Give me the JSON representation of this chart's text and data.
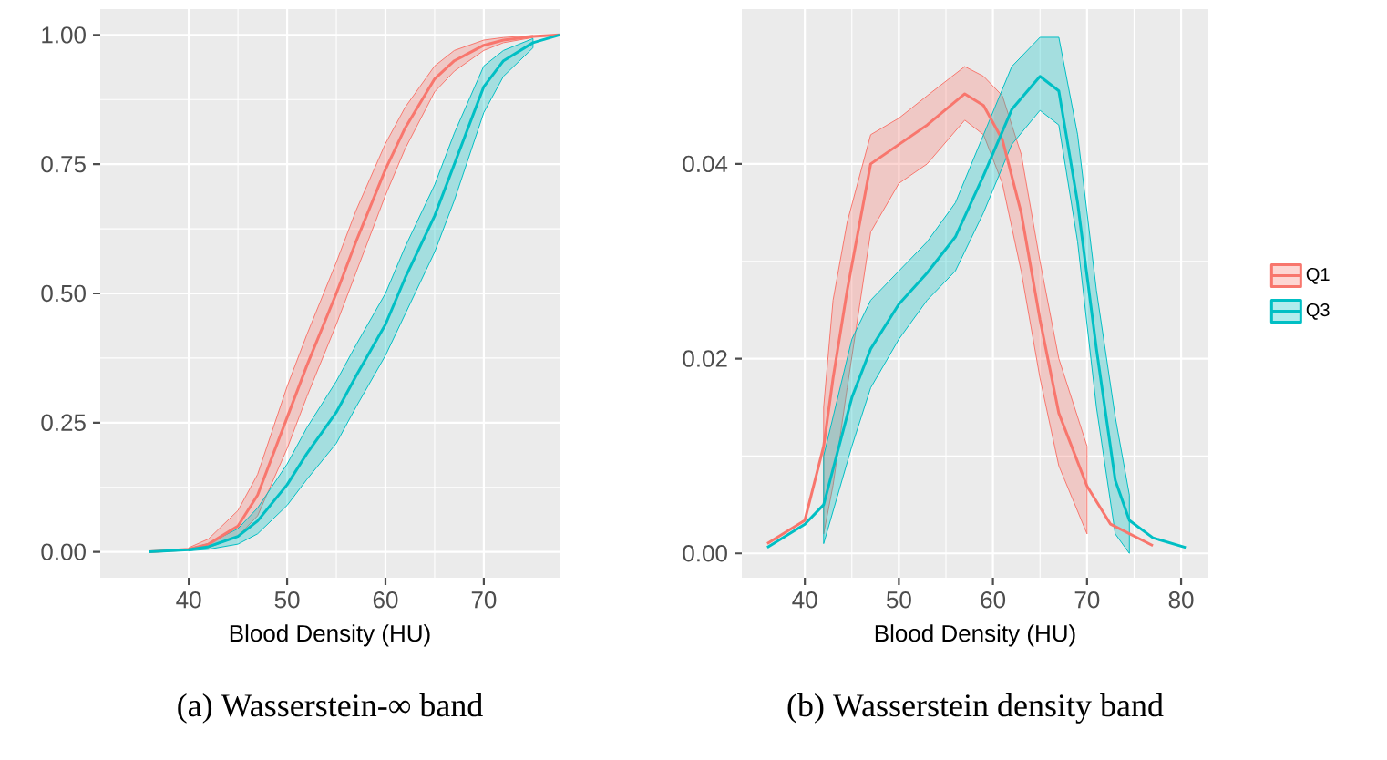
{
  "chart_data": [
    {
      "type": "line",
      "xlabel": "Blood Density (HU)",
      "annotations": [
        "(a) Wasserstein-∞ band"
      ],
      "xlim": [
        31,
        77.7
      ],
      "ylim": [
        -0.05,
        1.05
      ],
      "xticks": [
        40,
        50,
        60,
        70
      ],
      "yticks": [
        {
          "value": 0,
          "label": "0.00"
        },
        {
          "value": 0.25,
          "label": "0.25"
        },
        {
          "value": 0.5,
          "label": "0.50"
        },
        {
          "value": 0.75,
          "label": "0.75"
        },
        {
          "value": 1,
          "label": "1.00"
        }
      ],
      "grid": true,
      "series": [
        {
          "color": "#f8766d",
          "x": [
            36,
            40,
            42,
            45,
            47,
            50,
            52,
            55,
            57,
            60,
            62,
            65,
            67,
            70,
            72,
            75,
            77.7
          ],
          "values": [
            0,
            0.005,
            0.015,
            0.05,
            0.11,
            0.26,
            0.36,
            0.5,
            0.6,
            0.74,
            0.82,
            0.915,
            0.95,
            0.98,
            0.99,
            0.997,
            1
          ],
          "lower": [
            null,
            0.003,
            0.008,
            0.03,
            0.07,
            0.2,
            0.3,
            0.44,
            0.54,
            0.69,
            0.78,
            0.89,
            0.93,
            0.97,
            0.985,
            0.995,
            null
          ],
          "upper": [
            null,
            0.008,
            0.025,
            0.08,
            0.15,
            0.32,
            0.42,
            0.56,
            0.66,
            0.79,
            0.86,
            0.94,
            0.97,
            0.99,
            0.995,
            0.999,
            null
          ]
        },
        {
          "color": "#00bfc4",
          "x": [
            36,
            40,
            42,
            45,
            47,
            50,
            52,
            55,
            57,
            60,
            62,
            65,
            67,
            70,
            72,
            75,
            77.7
          ],
          "values": [
            0,
            0.004,
            0.01,
            0.03,
            0.06,
            0.13,
            0.19,
            0.27,
            0.34,
            0.44,
            0.53,
            0.65,
            0.75,
            0.9,
            0.95,
            0.985,
            1
          ],
          "lower": [
            null,
            0.002,
            0.005,
            0.015,
            0.035,
            0.09,
            0.14,
            0.21,
            0.28,
            0.38,
            0.46,
            0.58,
            0.68,
            0.85,
            0.92,
            0.975,
            null
          ],
          "upper": [
            null,
            0.006,
            0.016,
            0.045,
            0.085,
            0.17,
            0.24,
            0.33,
            0.4,
            0.5,
            0.59,
            0.71,
            0.81,
            0.94,
            0.97,
            0.993,
            null
          ]
        }
      ]
    },
    {
      "type": "line",
      "xlabel": "Blood Density (HU)",
      "annotations": [
        "(b) Wasserstein density band"
      ],
      "xlim": [
        33.3,
        82.9
      ],
      "ylim": [
        -0.0025,
        0.0559
      ],
      "xticks": [
        40,
        50,
        60,
        70,
        80
      ],
      "yticks": [
        {
          "value": 0,
          "label": "0.00"
        },
        {
          "value": 0.02,
          "label": "0.02"
        },
        {
          "value": 0.04,
          "label": "0.04"
        }
      ],
      "grid": true,
      "legend": "right",
      "series": [
        {
          "name": "Q1",
          "color": "#f8766d",
          "x": [
            36,
            40,
            42,
            43,
            44.5,
            47,
            50,
            53,
            57,
            59,
            61,
            63,
            65,
            67,
            70,
            72.5,
            77
          ],
          "values": [
            0.001,
            0.0034,
            0.011,
            0.018,
            0.027,
            0.04,
            0.042,
            0.044,
            0.0472,
            0.046,
            0.0425,
            0.035,
            0.024,
            0.0144,
            0.0069,
            0.003,
            0.0008
          ],
          "lower": [
            null,
            null,
            0.002,
            0.007,
            0.017,
            0.033,
            0.038,
            0.04,
            0.0445,
            0.043,
            0.038,
            0.029,
            0.018,
            0.009,
            0.002,
            null,
            null
          ],
          "upper": [
            null,
            null,
            0.015,
            0.026,
            0.034,
            0.043,
            0.0447,
            0.047,
            0.05,
            0.049,
            0.047,
            0.041,
            0.03,
            0.02,
            0.011,
            null,
            null
          ]
        },
        {
          "name": "Q3",
          "color": "#00bfc4",
          "x": [
            36,
            40,
            42,
            45,
            47,
            50,
            53,
            56,
            59,
            62,
            65,
            67,
            69,
            71,
            73,
            74.5,
            77,
            80.5
          ],
          "values": [
            0.0006,
            0.003,
            0.005,
            0.016,
            0.021,
            0.0256,
            0.0288,
            0.0325,
            0.0388,
            0.0456,
            0.049,
            0.0475,
            0.036,
            0.021,
            0.0075,
            0.0034,
            0.0016,
            0.0006
          ],
          "lower": [
            null,
            null,
            0.001,
            0.011,
            0.017,
            0.022,
            0.026,
            0.029,
            0.035,
            0.042,
            0.0455,
            0.044,
            0.032,
            0.015,
            0.002,
            0,
            null,
            null
          ],
          "upper": [
            null,
            null,
            0.01,
            0.022,
            0.026,
            0.029,
            0.032,
            0.036,
            0.043,
            0.05,
            0.053,
            0.053,
            0.043,
            0.027,
            0.014,
            0.006,
            null,
            null
          ]
        }
      ]
    }
  ]
}
